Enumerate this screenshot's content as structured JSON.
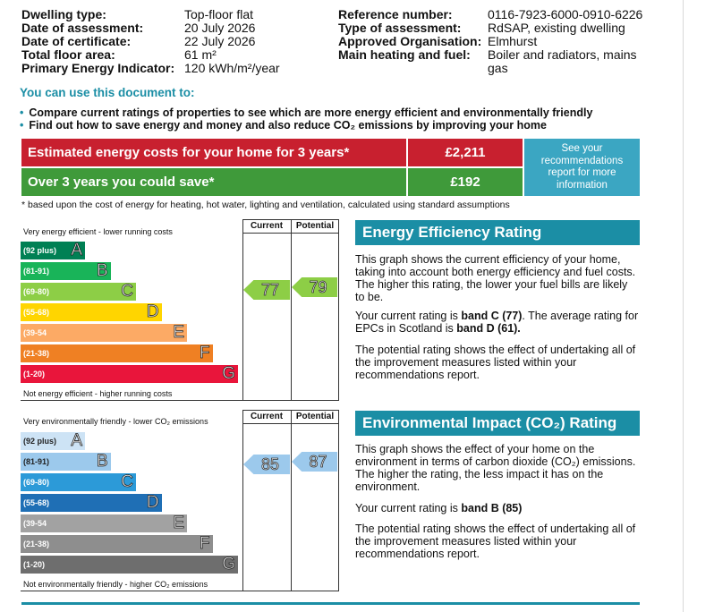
{
  "header": {
    "left": [
      {
        "label": "Dwelling type:",
        "value": "Top-floor flat"
      },
      {
        "label": "Date of assessment:",
        "value": "20 July 2026"
      },
      {
        "label": "Date of certificate:",
        "value": "22 July 2026"
      },
      {
        "label": "Total floor area:",
        "value": "61 m²"
      },
      {
        "label": "Primary Energy Indicator:",
        "value": "120 kWh/m²/year"
      }
    ],
    "right": [
      {
        "label": "Reference number:",
        "value": "0116-7923-6000-0910-6226"
      },
      {
        "label": "Type of assessment:",
        "value": "RdSAP, existing dwelling"
      },
      {
        "label": "Approved Organisation:",
        "value": "Elmhurst"
      },
      {
        "label": "Main heating and fuel:",
        "value": "Boiler and radiators, mains"
      },
      {
        "label": "",
        "value": "gas"
      }
    ]
  },
  "uses": {
    "title": "You can use this document to:",
    "bullets": [
      "Compare current ratings of properties to see which are more energy efficient and environmentally friendly",
      "Find out how to save energy and money and also reduce CO₂ emissions by improving your home"
    ]
  },
  "costs": {
    "estimated_label": "Estimated energy costs for your home for 3 years*",
    "estimated_value": "£2,211",
    "save_label": "Over 3 years you could save*",
    "save_value": "£192",
    "see_recs": "See your recommendations report for more information",
    "footnote": "* based upon the cost of energy for heating, hot water, lighting and ventilation, calculated using standard assumptions",
    "colors": {
      "red": "#c8202f",
      "green": "#3f9a3a",
      "blue": "#3ba6c2"
    }
  },
  "energy_chart": {
    "col_current": "Current",
    "col_potential": "Potential",
    "top_label": "Very energy efficient - lower running costs",
    "bottom_label": "Not energy efficient - higher running costs",
    "bands": [
      {
        "range": "(92 plus)",
        "letter": "A",
        "color": "#008054"
      },
      {
        "range": "(81-91)",
        "letter": "B",
        "color": "#19b459"
      },
      {
        "range": "(69-80)",
        "letter": "C",
        "color": "#8dce46"
      },
      {
        "range": "(55-68)",
        "letter": "D",
        "color": "#ffd500"
      },
      {
        "range": "(39-54",
        "letter": "E",
        "color": "#fcaa65"
      },
      {
        "range": "(21-38)",
        "letter": "F",
        "color": "#ef8023"
      },
      {
        "range": "(1-20)",
        "letter": "G",
        "color": "#e9153b"
      }
    ],
    "current": "77",
    "potential": "79",
    "current_color": "#8dce46",
    "potential_color": "#8dce46"
  },
  "env_chart": {
    "col_current": "Current",
    "col_potential": "Potential",
    "top_label": "Very environmentally friendly - lower CO₂ emissions",
    "bottom_label": "Not environmentally friendly - higher CO₂ emissions",
    "bands": [
      {
        "range": "(92 plus)",
        "letter": "A",
        "color": "#cde3f5"
      },
      {
        "range": "(81-91)",
        "letter": "B",
        "color": "#9cc9ec"
      },
      {
        "range": "(69-80)",
        "letter": "C",
        "color": "#2c9ad8"
      },
      {
        "range": "(55-68)",
        "letter": "D",
        "color": "#1f6fb5"
      },
      {
        "range": "(39-54",
        "letter": "E",
        "color": "#a2a2a2"
      },
      {
        "range": "(21-38)",
        "letter": "F",
        "color": "#8e8e8e"
      },
      {
        "range": "(1-20)",
        "letter": "G",
        "color": "#6e6e6e"
      }
    ],
    "current": "85",
    "potential": "87",
    "current_color": "#9cc9ec",
    "potential_color": "#9cc9ec"
  },
  "eer_panel": {
    "title": "Energy Efficiency Rating",
    "p1": "This graph shows the current efficiency of your home, taking into account both energy efficiency and fuel costs. The higher this rating, the lower your fuel bills are likely to be.",
    "p2_pre": "Your current rating is ",
    "p2_band": "band C (77)",
    "p2_mid": ". The average rating for EPCs in Scotland is ",
    "p2_avg": "band D (61).",
    "p3": "The potential rating shows the effect of undertaking all of the improvement measures listed within your recommendations report."
  },
  "eir_panel": {
    "title": "Environmental Impact (CO₂) Rating",
    "p1": "This graph shows the effect of your home on the environment in terms of carbon dioxide (CO₂) emissions. The higher the rating, the less impact it has on the environment.",
    "p2_pre": "Your current rating is ",
    "p2_band": "band B (85)",
    "p3": "The potential rating shows the effect of undertaking all of the improvement measures listed within your recommendations report."
  }
}
